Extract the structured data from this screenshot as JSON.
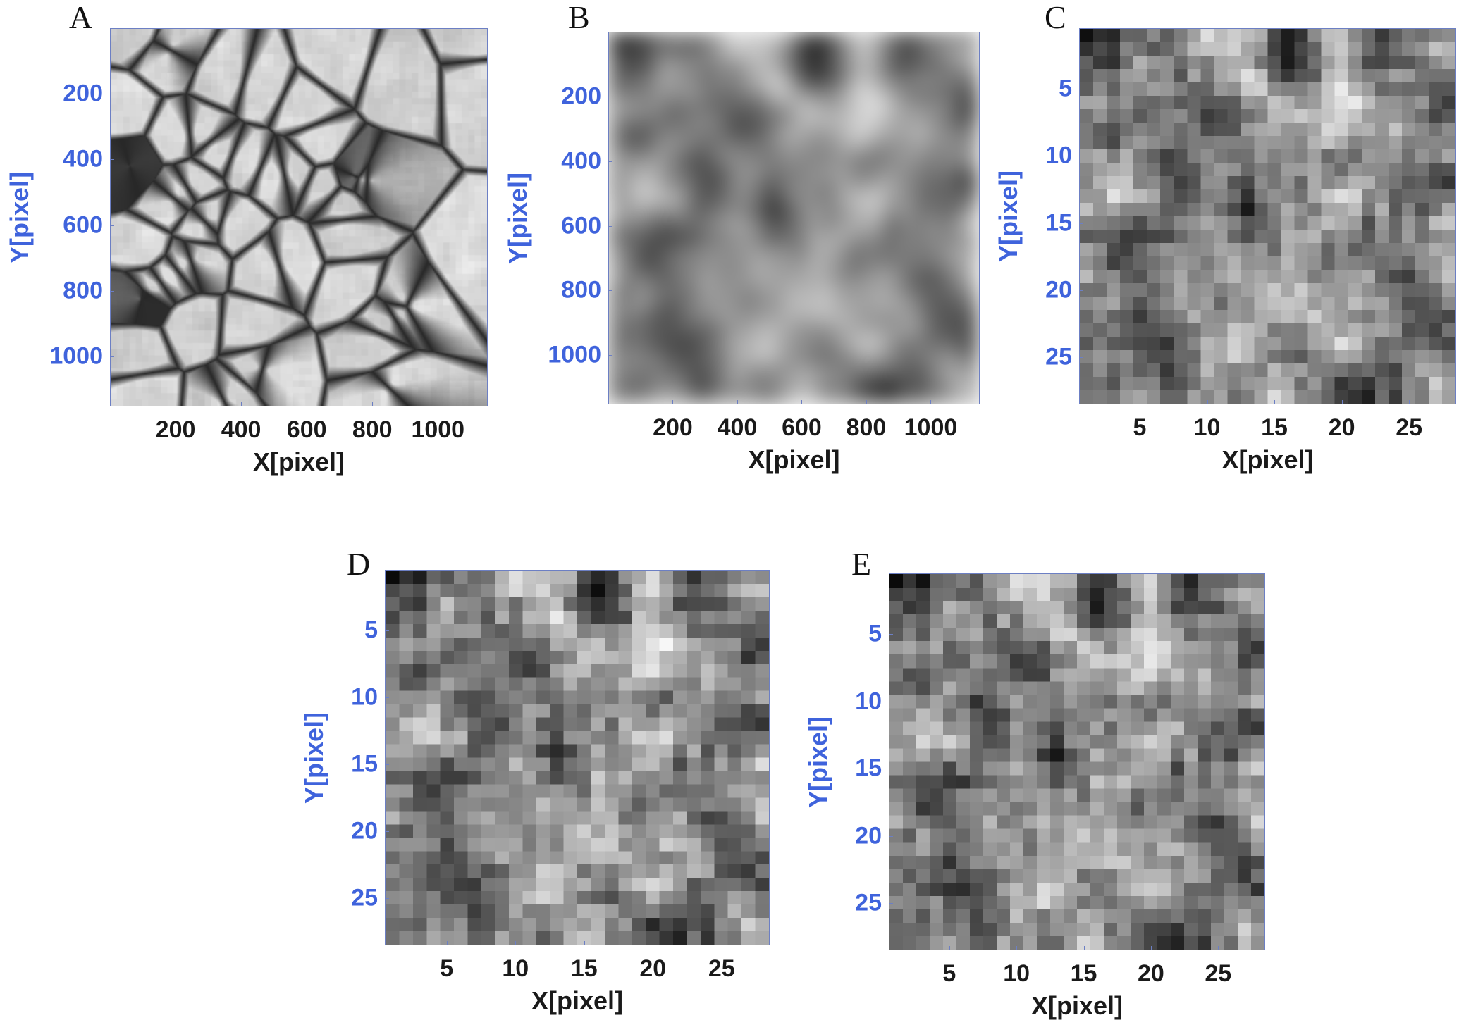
{
  "chart_data": [
    {
      "panel": "A",
      "type": "heatmap",
      "colormap": "gray",
      "style": "granulation",
      "xlabel": "X[pixel]",
      "ylabel": "Y[pixel]",
      "xlim": [
        0,
        1152
      ],
      "ylim": [
        0,
        1152
      ],
      "xticks": [
        200,
        400,
        600,
        800,
        1000
      ],
      "yticks": [
        200,
        400,
        600,
        800,
        1000
      ],
      "y_direction": "reversed"
    },
    {
      "panel": "B",
      "type": "heatmap",
      "colormap": "gray",
      "style": "blurred",
      "xlabel": "X[pixel]",
      "ylabel": "Y[pixel]",
      "xlim": [
        0,
        1152
      ],
      "ylim": [
        0,
        1152
      ],
      "xticks": [
        200,
        400,
        600,
        800,
        1000
      ],
      "yticks": [
        200,
        400,
        600,
        800,
        1000
      ],
      "y_direction": "reversed"
    },
    {
      "panel": "C",
      "type": "heatmap",
      "colormap": "gray",
      "style": "pixelated",
      "xlabel": "X[pixel]",
      "ylabel": "Y[pixel]",
      "xlim": [
        0.5,
        28.5
      ],
      "ylim": [
        0.5,
        28.5
      ],
      "xticks": [
        5,
        10,
        15,
        20,
        25
      ],
      "yticks": [
        5,
        10,
        15,
        20,
        25
      ],
      "y_direction": "reversed"
    },
    {
      "panel": "D",
      "type": "heatmap",
      "colormap": "gray",
      "style": "pixelated",
      "xlabel": "X[pixel]",
      "ylabel": "Y[pixel]",
      "xlim": [
        0.5,
        28.5
      ],
      "ylim": [
        0.5,
        28.5
      ],
      "xticks": [
        5,
        10,
        15,
        20,
        25
      ],
      "yticks": [
        5,
        10,
        15,
        20,
        25
      ],
      "y_direction": "reversed"
    },
    {
      "panel": "E",
      "type": "heatmap",
      "colormap": "gray",
      "style": "pixelated",
      "xlabel": "X[pixel]",
      "ylabel": "Y[pixel]",
      "xlim": [
        0.5,
        28.5
      ],
      "ylim": [
        0.5,
        28.5
      ],
      "xticks": [
        5,
        10,
        15,
        20,
        25
      ],
      "yticks": [
        5,
        10,
        15,
        20,
        25
      ],
      "y_direction": "reversed"
    }
  ],
  "colors": {
    "y_axis_text": "#3f63dc",
    "x_axis_text": "#1a1a1a",
    "axes_box": "#6c7fc4"
  }
}
